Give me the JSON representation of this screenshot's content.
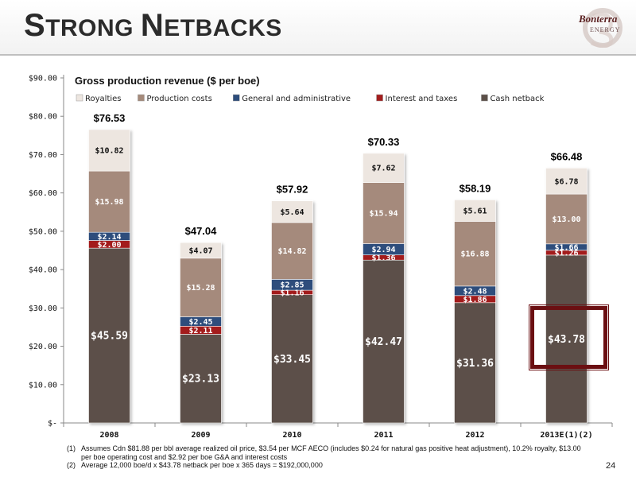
{
  "slide": {
    "title_parts": [
      {
        "text": "S",
        "size": "cap"
      },
      {
        "text": "TRONG ",
        "size": "small"
      },
      {
        "text": "N",
        "size": "cap"
      },
      {
        "text": "ETBACKS",
        "size": "small"
      }
    ],
    "logo": {
      "name": "Bonterra",
      "sub": "ENERGY"
    },
    "page_number": "24",
    "footnotes": [
      {
        "num": "(1)",
        "text": "Assumes Cdn $81.88  per bbl average realized oil price, $3.54 per MCF AECO (includes $0.24 for natural gas positive heat adjustment), 10.2% royalty, $13.00 per boe operating cost and $2.92 per boe G&A and interest costs"
      },
      {
        "num": "(2)",
        "text": "Average 12,000 boe/d x $43.78 netback per boe x 365 days = $192,000,000"
      }
    ]
  },
  "chart_data": {
    "type": "bar",
    "stacked": true,
    "title": "Gross production revenue ($ per boe)",
    "categories": [
      "2008",
      "2009",
      "2010",
      "2011",
      "2012",
      "2013E(1)(2)"
    ],
    "ylim": [
      0,
      90
    ],
    "y_ticks": [
      {
        "value": 0,
        "label": "$-"
      },
      {
        "value": 10,
        "label": "$10.00"
      },
      {
        "value": 20,
        "label": "$20.00"
      },
      {
        "value": 30,
        "label": "$30.00"
      },
      {
        "value": 40,
        "label": "$40.00"
      },
      {
        "value": 50,
        "label": "$50.00"
      },
      {
        "value": 60,
        "label": "$60.00"
      },
      {
        "value": 70,
        "label": "$70.00"
      },
      {
        "value": 80,
        "label": "$80.00"
      },
      {
        "value": 90,
        "label": "$90.00"
      }
    ],
    "legend_position": "top",
    "series": [
      {
        "name": "Cash netback",
        "color": "#5c5048",
        "values": [
          45.59,
          23.13,
          33.45,
          42.47,
          31.36,
          43.78
        ],
        "labels": [
          "$45.59",
          "$23.13",
          "$33.45",
          "$42.47",
          "$31.36",
          "$43.78"
        ]
      },
      {
        "name": "Interest and taxes",
        "color": "#a31d1d",
        "values": [
          2.0,
          2.11,
          1.16,
          1.36,
          1.86,
          1.26
        ],
        "labels": [
          "$2.00",
          "$2.11",
          "$1.16",
          "$1.36",
          "$1.86",
          "$1.26"
        ]
      },
      {
        "name": "General and administrative",
        "color": "#2d4d7c",
        "values": [
          2.14,
          2.45,
          2.85,
          2.94,
          2.48,
          1.66
        ],
        "labels": [
          "$2.14",
          "$2.45",
          "$2.85",
          "$2.94",
          "$2.48",
          "$1.66"
        ]
      },
      {
        "name": "Production costs",
        "color": "#a58a7b",
        "values": [
          15.98,
          15.28,
          14.82,
          15.94,
          16.88,
          13.0
        ],
        "labels": [
          "$15.98",
          "$15.28",
          "$14.82",
          "$15.94",
          "$16.88",
          "$13.00"
        ]
      },
      {
        "name": "Royalties",
        "color": "#ede6e0",
        "values": [
          10.82,
          4.07,
          5.64,
          7.62,
          5.61,
          6.78
        ],
        "labels": [
          "$10.82",
          "$4.07",
          "$5.64",
          "$7.62",
          "$5.61",
          "$6.78"
        ]
      }
    ],
    "legend_order": [
      "Royalties",
      "Production costs",
      "General and administrative",
      "Interest and taxes",
      "Cash netback"
    ],
    "totals": [
      "$76.53",
      "$47.04",
      "$57.92",
      "$70.33",
      "$58.19",
      "$66.48"
    ],
    "highlight_category_index": 5,
    "highlight_color": "#6b0f12"
  }
}
